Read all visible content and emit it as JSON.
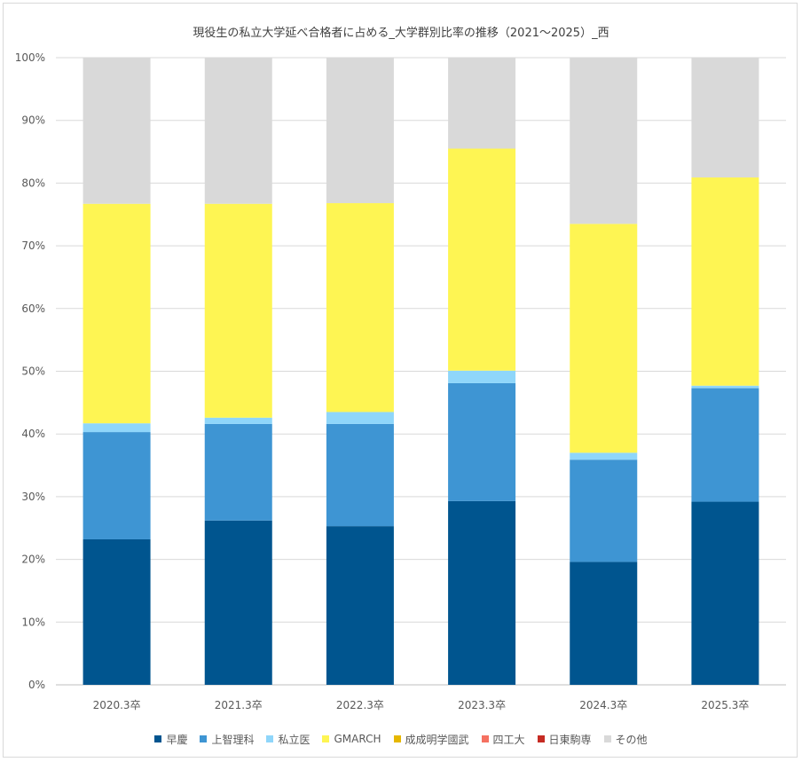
{
  "chart_data": {
    "type": "bar",
    "stacked": true,
    "title": "現役生の私立大学延べ合格者に占める_大学群別比率の推移（2021～2025）_西",
    "categories": [
      "2020.3卒",
      "2021.3卒",
      "2022.3卒",
      "2023.3卒",
      "2024.3卒",
      "2025.3卒"
    ],
    "y_ticks": [
      "0%",
      "10%",
      "20%",
      "30%",
      "40%",
      "50%",
      "60%",
      "70%",
      "80%",
      "90%",
      "100%"
    ],
    "ylim": [
      0,
      100
    ],
    "grid": true,
    "legend_position": "bottom",
    "series": [
      {
        "name": "早慶",
        "color": "#00558f",
        "values": [
          23.2,
          26.2,
          25.3,
          29.3,
          19.6,
          29.2
        ]
      },
      {
        "name": "上智理科",
        "color": "#3e95d3",
        "values": [
          17.1,
          15.4,
          16.3,
          18.8,
          16.3,
          18.1
        ]
      },
      {
        "name": "私立医",
        "color": "#8fd6fa",
        "values": [
          1.4,
          1.0,
          1.9,
          2.0,
          1.1,
          0.4
        ]
      },
      {
        "name": "GMARCH",
        "color": "#fef553",
        "values": [
          35.0,
          34.1,
          33.3,
          35.4,
          36.5,
          33.2
        ]
      },
      {
        "name": "成成明学國武",
        "color": "#e6b700",
        "values": [
          0,
          0,
          0,
          0,
          0,
          0
        ]
      },
      {
        "name": "四工大",
        "color": "#f57161",
        "values": [
          0,
          0,
          0,
          0,
          0,
          0
        ]
      },
      {
        "name": "日東駒専",
        "color": "#c62b23",
        "values": [
          0,
          0,
          0,
          0,
          0,
          0
        ]
      },
      {
        "name": "その他",
        "color": "#d9d9d9",
        "values": [
          23.3,
          23.3,
          23.2,
          14.5,
          26.5,
          19.1
        ]
      }
    ]
  }
}
